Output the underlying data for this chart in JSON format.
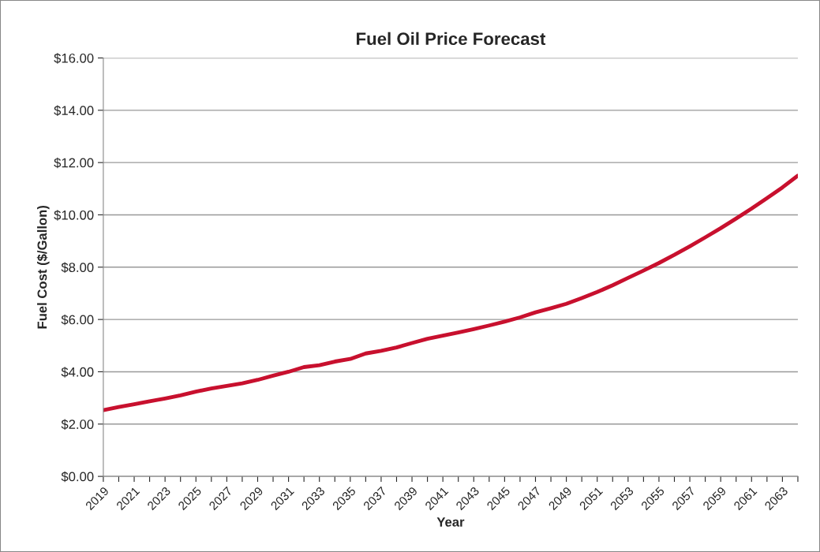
{
  "chart_data": {
    "type": "line",
    "title": "Fuel Oil Price Forecast",
    "xlabel": "Year",
    "ylabel": "Fuel Cost ($/Gallon)",
    "categories": [
      "2019",
      null,
      "2021",
      null,
      "2023",
      null,
      "2025",
      null,
      "2027",
      null,
      "2029",
      null,
      "2031",
      null,
      "2033",
      null,
      "2035",
      null,
      "2037",
      null,
      "2039",
      null,
      "2041",
      null,
      "2043",
      null,
      "2045",
      null,
      "2047",
      null,
      "2049",
      null,
      "2051",
      null,
      "2053",
      null,
      "2055",
      null,
      "2057",
      null,
      "2059",
      null,
      "2061",
      null,
      "2063",
      null
    ],
    "series": [
      {
        "color": "#c8102e",
        "values": [
          2.53,
          2.65,
          2.76,
          2.87,
          2.98,
          3.1,
          3.24,
          3.36,
          3.46,
          3.56,
          3.69,
          3.85,
          4.0,
          4.18,
          4.25,
          4.39,
          4.49,
          4.7,
          4.8,
          4.93,
          5.1,
          5.26,
          5.38,
          5.5,
          5.63,
          5.77,
          5.92,
          6.08,
          6.27,
          6.43,
          6.6,
          6.82,
          7.05,
          7.31,
          7.59,
          7.87,
          8.16,
          8.47,
          8.8,
          9.14,
          9.49,
          9.86,
          10.24,
          10.64,
          11.05,
          11.5
        ]
      }
    ],
    "ylim": [
      0,
      16
    ],
    "yticks": [
      {
        "value": 0,
        "label": "$0.00"
      },
      {
        "value": 2,
        "label": "$2.00"
      },
      {
        "value": 4,
        "label": "$4.00"
      },
      {
        "value": 6,
        "label": "$6.00"
      },
      {
        "value": 8,
        "label": "$8.00"
      },
      {
        "value": 10,
        "label": "$10.00"
      },
      {
        "value": 12,
        "label": "$12.00"
      },
      {
        "value": 14,
        "label": "$14.00"
      },
      {
        "value": 16,
        "label": "$16.00"
      }
    ],
    "grid": "y",
    "legend": false,
    "marker": "none",
    "line_style": "solid"
  }
}
